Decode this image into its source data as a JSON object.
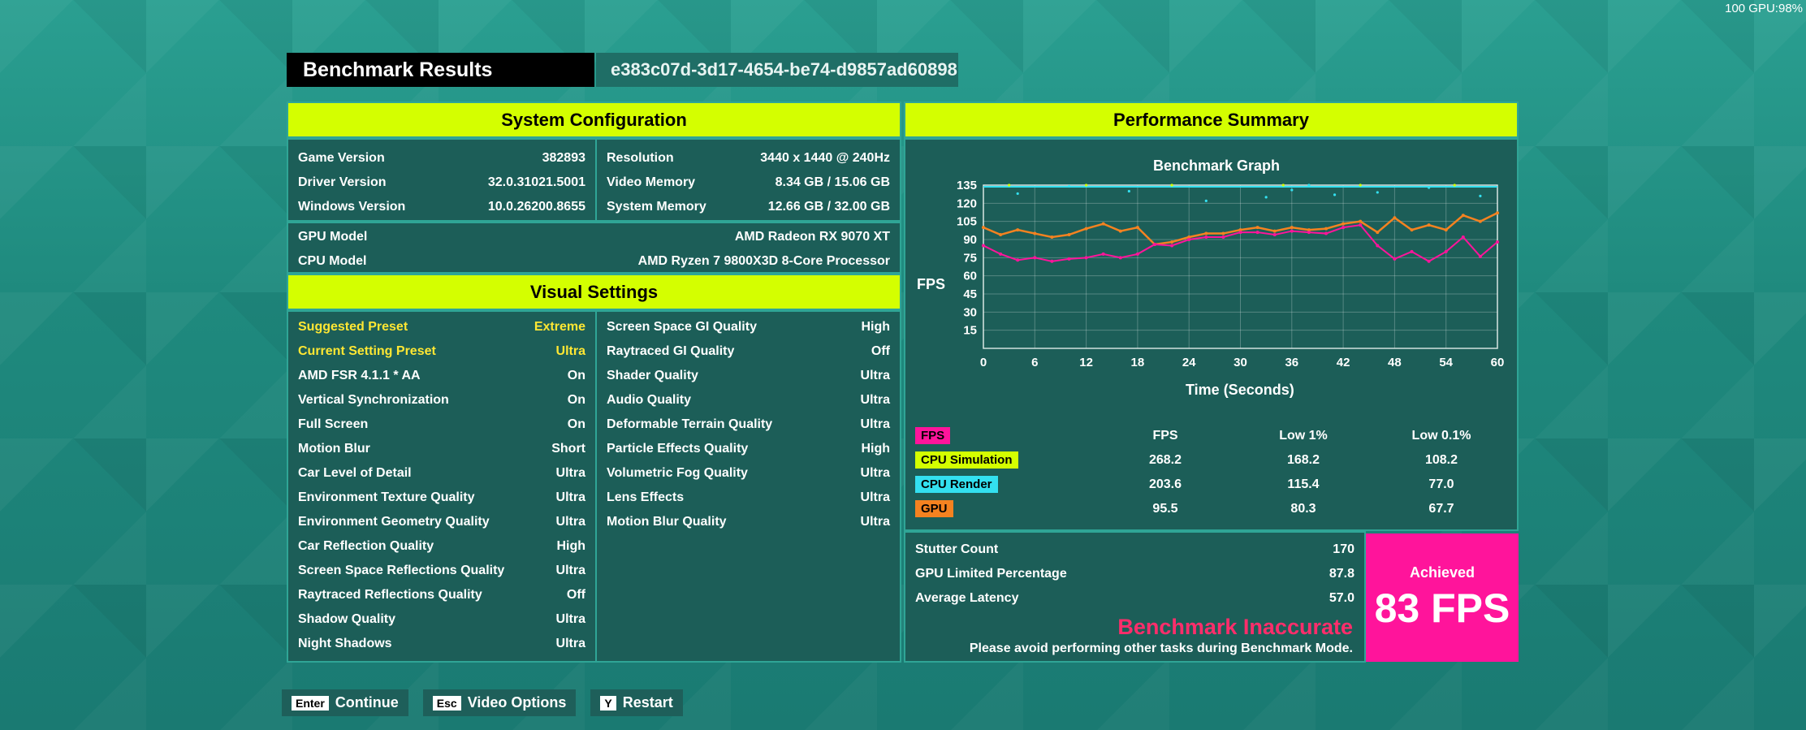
{
  "overlay": {
    "gpu_readout": "100 GPU:98%"
  },
  "header": {
    "title": "Benchmark Results",
    "run_id": "e383c07d-3d17-4654-be74-d9857ad60898"
  },
  "system_config": {
    "heading": "System Configuration",
    "left": [
      [
        "Game Version",
        "382893"
      ],
      [
        "Driver Version",
        "32.0.31021.5001"
      ],
      [
        "Windows Version",
        "10.0.26200.8655"
      ]
    ],
    "right": [
      [
        "Resolution",
        "3440 x 1440 @ 240Hz"
      ],
      [
        "Video Memory",
        "8.34 GB / 15.06 GB"
      ],
      [
        "System Memory",
        "12.66 GB / 32.00 GB"
      ]
    ],
    "hardware": [
      [
        "GPU Model",
        "AMD Radeon RX 9070 XT"
      ],
      [
        "CPU Model",
        "AMD Ryzen 7 9800X3D 8-Core Processor"
      ]
    ]
  },
  "visual_settings": {
    "heading": "Visual Settings",
    "left": [
      [
        "Suggested Preset",
        "Extreme"
      ],
      [
        "Current Setting Preset",
        "Ultra"
      ],
      [
        "AMD FSR 4.1.1 * AA",
        "On"
      ],
      [
        "Vertical Synchronization",
        "On"
      ],
      [
        "Full Screen",
        "On"
      ],
      [
        "Motion Blur",
        "Short"
      ],
      [
        "Car Level of Detail",
        "Ultra"
      ],
      [
        "Environment Texture Quality",
        "Ultra"
      ],
      [
        "Environment Geometry Quality",
        "Ultra"
      ],
      [
        "Car Reflection Quality",
        "High"
      ],
      [
        "Screen Space Reflections Quality",
        "Ultra"
      ],
      [
        "Raytraced Reflections Quality",
        "Off"
      ],
      [
        "Shadow Quality",
        "Ultra"
      ],
      [
        "Night Shadows",
        "Ultra"
      ]
    ],
    "right": [
      [
        "Screen Space GI Quality",
        "High"
      ],
      [
        "Raytraced GI Quality",
        "Off"
      ],
      [
        "Shader Quality",
        "Ultra"
      ],
      [
        "Audio Quality",
        "Ultra"
      ],
      [
        "Deformable Terrain Quality",
        "Ultra"
      ],
      [
        "Particle Effects Quality",
        "High"
      ],
      [
        "Volumetric Fog Quality",
        "Ultra"
      ],
      [
        "Lens Effects",
        "Ultra"
      ],
      [
        "Motion Blur Quality",
        "Ultra"
      ]
    ]
  },
  "performance": {
    "heading": "Performance Summary",
    "graph_title": "Benchmark Graph",
    "ylabel": "FPS",
    "xlabel": "Time (Seconds)",
    "columns": [
      "FPS",
      "Low 1%",
      "Low 0.1%"
    ],
    "rows": [
      {
        "label": "FPS",
        "color": "#ff149b",
        "values": [
          "",
          "",
          ""
        ]
      },
      {
        "label": "CPU Simulation",
        "color": "#d4ff00",
        "values": [
          "268.2",
          "168.2",
          "108.2"
        ]
      },
      {
        "label": "CPU Render",
        "color": "#33e0f0",
        "values": [
          "203.6",
          "115.4",
          "77.0"
        ]
      },
      {
        "label": "GPU",
        "color": "#f58220",
        "values": [
          "95.5",
          "80.3",
          "67.7"
        ]
      }
    ],
    "stats": [
      [
        "Stutter Count",
        "170"
      ],
      [
        "GPU Limited Percentage",
        "87.8"
      ],
      [
        "Average Latency",
        "57.0"
      ]
    ],
    "inaccurate_title": "Benchmark Inaccurate",
    "inaccurate_msg": "Please avoid performing other tasks during Benchmark Mode.",
    "achieved_label": "Achieved",
    "achieved_value": "83 FPS"
  },
  "chart_data": {
    "type": "line",
    "title": "Benchmark Graph",
    "xlabel": "Time (Seconds)",
    "ylabel": "FPS",
    "xlim": [
      0,
      60
    ],
    "ylim": [
      0,
      135
    ],
    "xticks": [
      0,
      6,
      12,
      18,
      24,
      30,
      36,
      42,
      48,
      54,
      60
    ],
    "yticks": [
      15,
      30,
      45,
      60,
      75,
      90,
      105,
      120,
      135
    ],
    "grid": true,
    "series": [
      {
        "name": "GPU",
        "color": "#f58220",
        "x": [
          0,
          2,
          4,
          6,
          8,
          10,
          12,
          14,
          16,
          18,
          20,
          22,
          24,
          26,
          28,
          30,
          32,
          34,
          36,
          38,
          40,
          42,
          44,
          46,
          48,
          50,
          52,
          54,
          56,
          58,
          60
        ],
        "y": [
          100,
          94,
          98,
          95,
          92,
          94,
          99,
          103,
          97,
          100,
          86,
          88,
          92,
          95,
          95,
          98,
          100,
          97,
          100,
          98,
          99,
          103,
          105,
          96,
          108,
          98,
          102,
          98,
          110,
          105,
          112
        ]
      },
      {
        "name": "FPS",
        "color": "#ff149b",
        "x": [
          0,
          2,
          4,
          6,
          8,
          10,
          12,
          14,
          16,
          18,
          20,
          22,
          24,
          26,
          28,
          30,
          32,
          34,
          36,
          38,
          40,
          42,
          44,
          46,
          48,
          50,
          52,
          54,
          56,
          58,
          60
        ],
        "y": [
          85,
          78,
          73,
          75,
          72,
          74,
          75,
          78,
          75,
          78,
          86,
          85,
          90,
          92,
          92,
          96,
          96,
          94,
          97,
          96,
          95,
          100,
          102,
          85,
          74,
          80,
          72,
          80,
          92,
          76,
          88
        ]
      },
      {
        "name": "CPU Render",
        "color": "#33e0f0",
        "x": [
          4,
          10,
          17,
          26,
          33,
          36,
          38,
          41,
          46,
          52,
          58
        ],
        "y": [
          128,
          134,
          130,
          122,
          125,
          131,
          135,
          127,
          129,
          133,
          126
        ]
      },
      {
        "name": "CPU Simulation",
        "color": "#d4ff00",
        "x": [
          3,
          12,
          22,
          35,
          44,
          55
        ],
        "y": [
          135,
          135,
          135,
          135,
          135,
          135
        ]
      }
    ]
  },
  "footer": {
    "buttons": [
      {
        "key": "Enter",
        "label": "Continue"
      },
      {
        "key": "Esc",
        "label": "Video Options"
      },
      {
        "key": "Y",
        "label": "Restart"
      }
    ]
  }
}
